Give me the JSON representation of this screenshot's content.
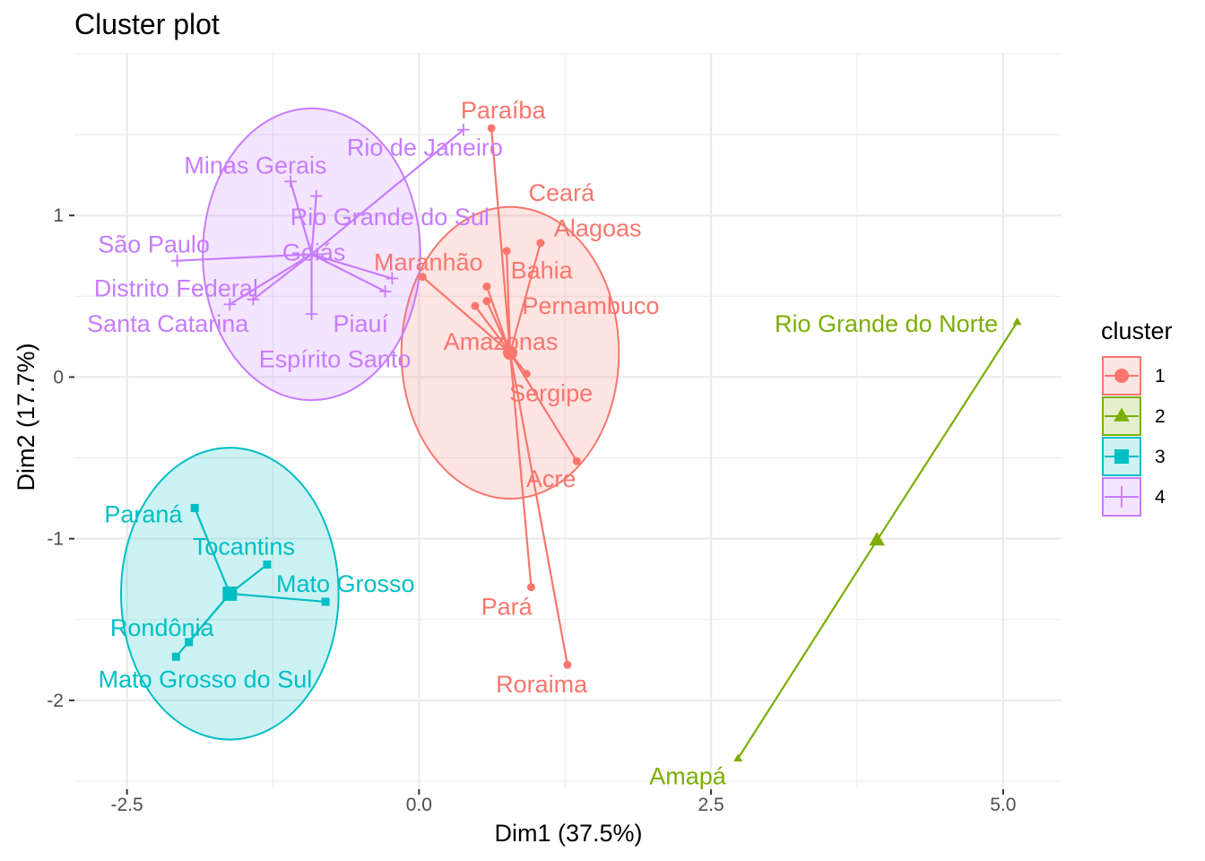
{
  "chart_data": {
    "type": "scatter",
    "title": "Cluster plot",
    "xlabel": "Dim1 (37.5%)",
    "ylabel": "Dim2 (17.7%)",
    "xlim": [
      -2.95,
      5.5
    ],
    "ylim": [
      -2.55,
      2.0
    ],
    "xticks": [
      -2.5,
      0.0,
      2.5,
      5.0
    ],
    "xtick_labels": [
      "-2.5",
      "0.0",
      "2.5",
      "5.0"
    ],
    "yticks": [
      -2,
      -1,
      0,
      1
    ],
    "ytick_labels": [
      "-2",
      "-1",
      "0",
      "1"
    ],
    "grid": true,
    "legend": {
      "title": "cluster",
      "position": "right",
      "entries": [
        "1",
        "2",
        "3",
        "4"
      ]
    },
    "clusters": [
      {
        "name": "1",
        "color": "#F8766D",
        "marker": "circle",
        "center": [
          0.78,
          0.15
        ],
        "ellipse": {
          "cx": 0.78,
          "cy": 0.15,
          "rx": 0.95,
          "ry": 0.95
        },
        "points": [
          {
            "label": "Paraíba",
            "x": 0.62,
            "y": 1.54,
            "lx": 0.72,
            "ly": 1.65
          },
          {
            "label": "Ceará",
            "x": 0.75,
            "y": 0.78,
            "lx": 1.22,
            "ly": 1.14
          },
          {
            "label": "Alagoas",
            "x": 1.04,
            "y": 0.83,
            "lx": 1.53,
            "ly": 0.92
          },
          {
            "label": "Maranhão",
            "x": 0.03,
            "y": 0.62,
            "lx": 0.08,
            "ly": 0.71
          },
          {
            "label": "Bahia",
            "x": 0.58,
            "y": 0.56,
            "lx": 1.05,
            "ly": 0.66
          },
          {
            "label": "Pernambuco",
            "x": 0.58,
            "y": 0.47,
            "lx": 1.47,
            "ly": 0.44
          },
          {
            "label": "Amazonas",
            "x": 0.48,
            "y": 0.44,
            "lx": 0.7,
            "ly": 0.22
          },
          {
            "label": "Sergipe",
            "x": 0.92,
            "y": 0.02,
            "lx": 1.13,
            "ly": -0.1
          },
          {
            "label": "Acre",
            "x": 1.35,
            "y": -0.52,
            "lx": 1.13,
            "ly": -0.63
          },
          {
            "label": "Pará",
            "x": 0.96,
            "y": -1.3,
            "lx": 0.75,
            "ly": -1.42
          },
          {
            "label": "Roraima",
            "x": 1.27,
            "y": -1.78,
            "lx": 1.05,
            "ly": -1.9
          }
        ]
      },
      {
        "name": "2",
        "color": "#7CAE00",
        "marker": "triangle",
        "center": [
          3.92,
          -1.01
        ],
        "ellipse": null,
        "points": [
          {
            "label": "Rio Grande do Norte",
            "x": 5.12,
            "y": 0.34,
            "lx": 4.0,
            "ly": 0.33
          },
          {
            "label": "Amapá",
            "x": 2.73,
            "y": -2.36,
            "lx": 2.3,
            "ly": -2.47
          }
        ]
      },
      {
        "name": "3",
        "color": "#00BFC4",
        "marker": "square",
        "center": [
          -1.62,
          -1.34
        ],
        "ellipse": {
          "cx": -1.62,
          "cy": -1.34,
          "rx": 0.95,
          "ry": 0.95
        },
        "points": [
          {
            "label": "Paraná",
            "x": -1.92,
            "y": -0.81,
            "lx": -2.36,
            "ly": -0.85
          },
          {
            "label": "Tocantins",
            "x": -1.3,
            "y": -1.16,
            "lx": -1.5,
            "ly": -1.05
          },
          {
            "label": "Mato Grosso",
            "x": -0.8,
            "y": -1.39,
            "lx": -0.63,
            "ly": -1.28
          },
          {
            "label": "Rondônia",
            "x": -1.97,
            "y": -1.64,
            "lx": -2.2,
            "ly": -1.55
          },
          {
            "label": "Mato Grosso do Sul",
            "x": -2.08,
            "y": -1.73,
            "lx": -1.83,
            "ly": -1.87
          }
        ]
      },
      {
        "name": "4",
        "color": "#C77CFF",
        "marker": "cross",
        "center": [
          -0.92,
          0.76
        ],
        "ellipse": {
          "cx": -0.92,
          "cy": 0.76,
          "rx": 0.95,
          "ry": 0.95
        },
        "points": [
          {
            "label": "Rio de Janeiro",
            "x": 0.38,
            "y": 1.53,
            "lx": 0.05,
            "ly": 1.42
          },
          {
            "label": "Minas Gerais",
            "x": -1.1,
            "y": 1.21,
            "lx": -1.4,
            "ly": 1.31
          },
          {
            "label": "Rio Grande do Sul",
            "x": -0.88,
            "y": 1.12,
            "lx": -0.25,
            "ly": 0.99
          },
          {
            "label": "São Paulo",
            "x": -2.07,
            "y": 0.72,
            "lx": -2.27,
            "ly": 0.82
          },
          {
            "label": "Goiás",
            "x": -0.23,
            "y": 0.61,
            "lx": -0.9,
            "ly": 0.77
          },
          {
            "label": "Distrito Federal",
            "x": -1.62,
            "y": 0.45,
            "lx": -2.08,
            "ly": 0.55
          },
          {
            "label": "Piauí",
            "x": -0.29,
            "y": 0.53,
            "lx": -0.5,
            "ly": 0.33
          },
          {
            "label": "Santa Catarina",
            "x": -1.42,
            "y": 0.48,
            "lx": -2.15,
            "ly": 0.33
          },
          {
            "label": "Espírito Santo",
            "x": -0.92,
            "y": 0.39,
            "lx": -0.72,
            "ly": 0.11
          }
        ]
      }
    ]
  }
}
